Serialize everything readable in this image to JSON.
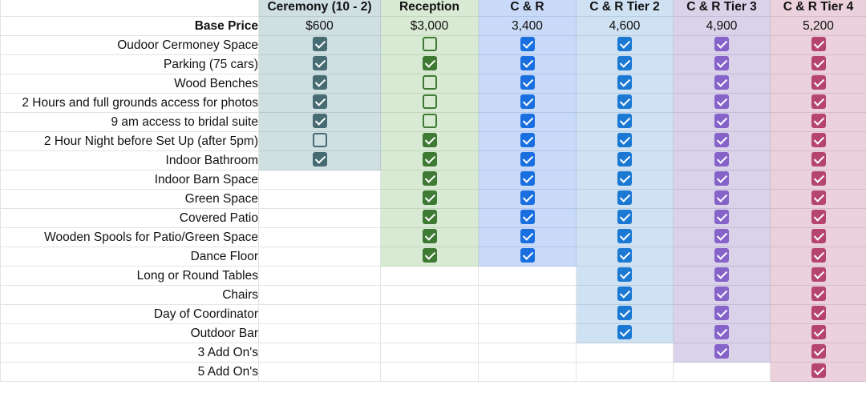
{
  "sheet": {
    "columns": [
      {
        "label": "Ceremony (10 - 2)",
        "price": "$600",
        "color": "#466b73"
      },
      {
        "label": "Reception",
        "price": "$3,000",
        "color": "#3f7a35"
      },
      {
        "label": "C & R",
        "price": "3,400",
        "color": "#1a6fe0"
      },
      {
        "label": "C & R Tier 2",
        "price": "4,600",
        "color": "#1b79d4"
      },
      {
        "label": "C & R Tier 3",
        "price": "4,900",
        "color": "#8663c9"
      },
      {
        "label": "C & R Tier 4",
        "price": "5,200",
        "color": "#b54570"
      }
    ],
    "base_price_label": "Base Price",
    "features": [
      {
        "label": "Oudoor Cermoney Space",
        "cells": [
          true,
          false,
          true,
          true,
          true,
          true
        ]
      },
      {
        "label": "Parking (75 cars)",
        "cells": [
          true,
          true,
          true,
          true,
          true,
          true
        ]
      },
      {
        "label": "Wood Benches",
        "cells": [
          true,
          false,
          true,
          true,
          true,
          true
        ]
      },
      {
        "label": "2 Hours and full grounds access for photos",
        "cells": [
          true,
          false,
          true,
          true,
          true,
          true
        ]
      },
      {
        "label": "9 am access to bridal suite",
        "cells": [
          true,
          false,
          true,
          true,
          true,
          true
        ]
      },
      {
        "label": "2 Hour Night before Set Up (after 5pm)",
        "cells": [
          false,
          true,
          true,
          true,
          true,
          true
        ]
      },
      {
        "label": "Indoor Bathroom",
        "cells": [
          true,
          true,
          true,
          true,
          true,
          true
        ]
      },
      {
        "label": "Indoor Barn Space",
        "cells": [
          null,
          true,
          true,
          true,
          true,
          true
        ]
      },
      {
        "label": "Green Space",
        "cells": [
          null,
          true,
          true,
          true,
          true,
          true
        ]
      },
      {
        "label": "Covered Patio",
        "cells": [
          null,
          true,
          true,
          true,
          true,
          true
        ]
      },
      {
        "label": "Wooden Spools for Patio/Green Space",
        "cells": [
          null,
          true,
          true,
          true,
          true,
          true
        ]
      },
      {
        "label": "Dance Floor",
        "cells": [
          null,
          true,
          true,
          true,
          true,
          true
        ]
      },
      {
        "label": "Long or Round Tables",
        "cells": [
          null,
          null,
          null,
          true,
          true,
          true
        ]
      },
      {
        "label": "Chairs",
        "cells": [
          null,
          null,
          null,
          true,
          true,
          true
        ]
      },
      {
        "label": "Day of Coordinator",
        "cells": [
          null,
          null,
          null,
          true,
          true,
          true
        ]
      },
      {
        "label": "Outdoor Bar",
        "cells": [
          null,
          null,
          null,
          true,
          true,
          true
        ]
      },
      {
        "label": "3 Add On's",
        "cells": [
          null,
          null,
          null,
          null,
          true,
          true
        ]
      },
      {
        "label": "5 Add On's",
        "cells": [
          null,
          null,
          null,
          null,
          null,
          true
        ]
      }
    ]
  }
}
